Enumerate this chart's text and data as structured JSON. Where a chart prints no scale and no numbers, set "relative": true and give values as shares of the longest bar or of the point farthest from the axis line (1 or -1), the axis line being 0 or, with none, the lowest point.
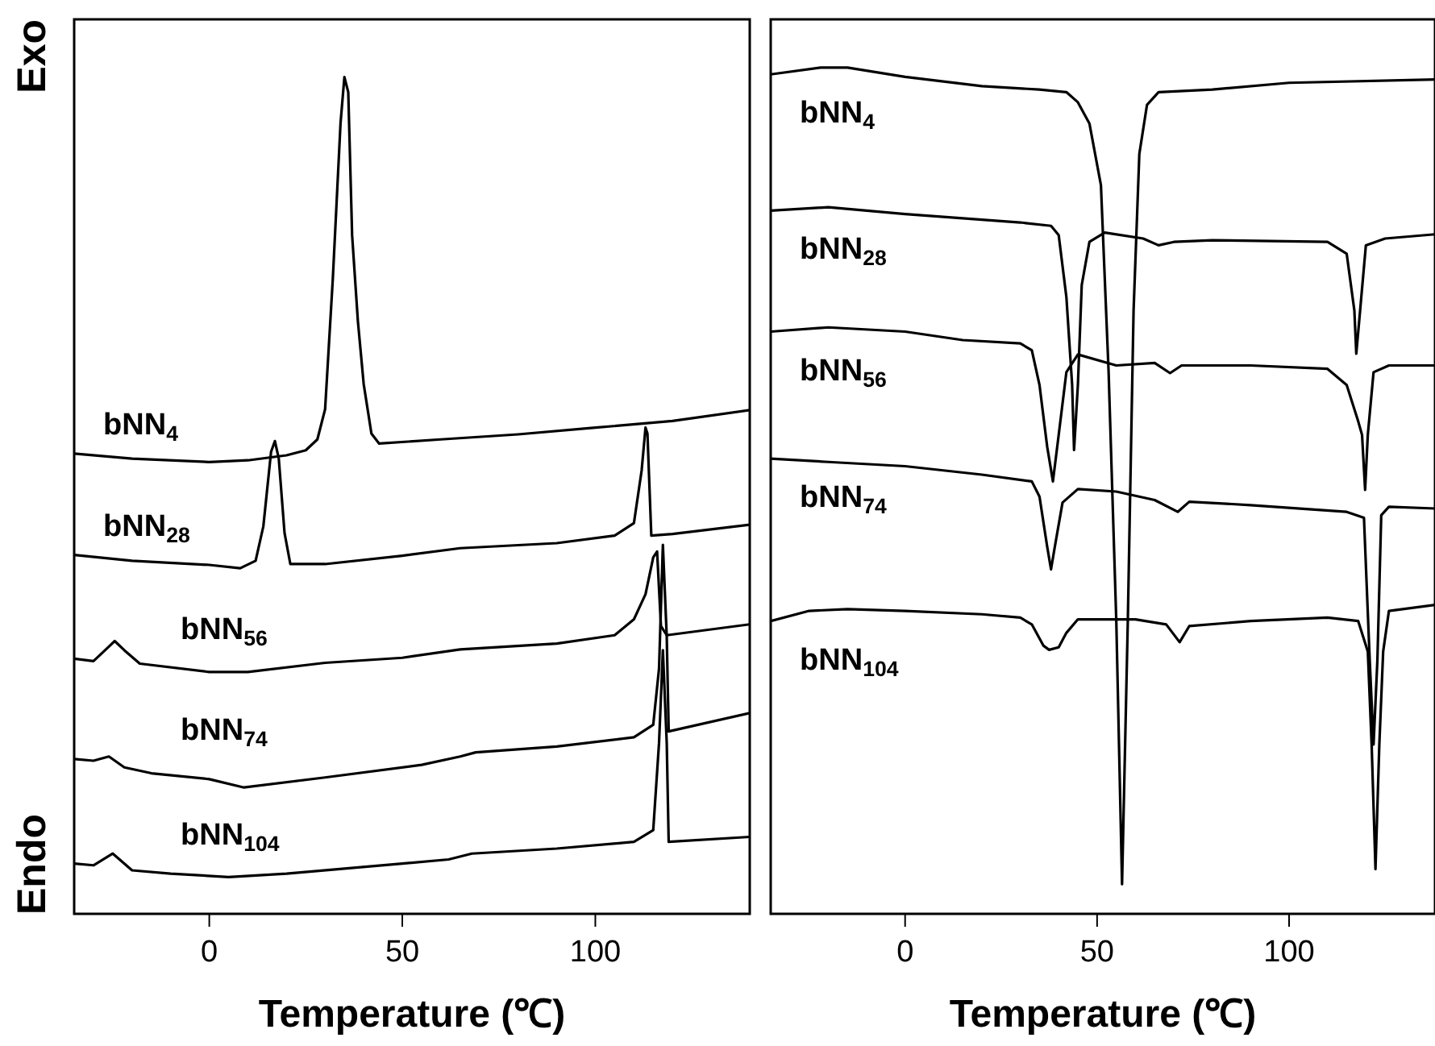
{
  "chart_data": [
    {
      "type": "line",
      "relative": true,
      "xlabel": "Temperature (℃)",
      "xlim": [
        -35,
        140
      ],
      "xticks": [
        0,
        50,
        100
      ],
      "annotations": [
        "Exo",
        "Endo"
      ],
      "series": [
        {
          "name": "bNN$_{4}$",
          "color": "#000000",
          "x": [
            -35,
            -20,
            0,
            10,
            20,
            25,
            28,
            30,
            32,
            34,
            35,
            36,
            37,
            38.5,
            40,
            42,
            44,
            60,
            80,
            100,
            120,
            140
          ],
          "values": [
            0.55,
            0.544,
            0.54,
            0.542,
            0.548,
            0.554,
            0.567,
            0.603,
            0.759,
            0.945,
            1.0,
            0.982,
            0.811,
            0.708,
            0.633,
            0.574,
            0.562,
            0.567,
            0.573,
            0.581,
            0.589,
            0.602
          ]
        },
        {
          "name": "bNN$_{28}$",
          "color": "#000000",
          "x": [
            -35,
            -20,
            0,
            8,
            12,
            14,
            16,
            17,
            18,
            19.5,
            21,
            30,
            50,
            65,
            90,
            105,
            110,
            112,
            113,
            113.5,
            114.5,
            120,
            140
          ],
          "values": [
            0.429,
            0.422,
            0.417,
            0.413,
            0.422,
            0.463,
            0.552,
            0.565,
            0.544,
            0.455,
            0.418,
            0.418,
            0.428,
            0.437,
            0.443,
            0.452,
            0.467,
            0.53,
            0.581,
            0.574,
            0.452,
            0.454,
            0.465
          ]
        },
        {
          "name": "bNN$_{56}$",
          "color": "#000000",
          "x": [
            -35,
            -30,
            -27,
            -24.5,
            -22,
            -18,
            0,
            10,
            30,
            50,
            65,
            90,
            105,
            110,
            113,
            115,
            116,
            117,
            118.5,
            140
          ],
          "values": [
            0.305,
            0.302,
            0.315,
            0.326,
            0.315,
            0.299,
            0.289,
            0.289,
            0.3,
            0.306,
            0.316,
            0.323,
            0.333,
            0.352,
            0.382,
            0.426,
            0.433,
            0.344,
            0.333,
            0.346
          ]
        },
        {
          "name": "bNN$_{74}$",
          "color": "#000000",
          "x": [
            -35,
            -30,
            -26,
            -22,
            -15,
            0,
            9,
            30,
            55,
            65,
            69,
            90,
            110,
            115,
            116.5,
            117.5,
            118.5,
            119,
            140
          ],
          "values": [
            0.185,
            0.183,
            0.188,
            0.175,
            0.168,
            0.161,
            0.151,
            0.163,
            0.178,
            0.188,
            0.193,
            0.2,
            0.211,
            0.226,
            0.293,
            0.441,
            0.331,
            0.218,
            0.24
          ]
        },
        {
          "name": "bNN$_{104}$",
          "color": "#000000",
          "x": [
            -35,
            -30,
            -25,
            -20,
            -10,
            5,
            20,
            50,
            62,
            68,
            90,
            110,
            115,
            116.5,
            117.5,
            118.5,
            119,
            140
          ],
          "values": [
            0.06,
            0.058,
            0.072,
            0.052,
            0.048,
            0.044,
            0.048,
            0.06,
            0.065,
            0.072,
            0.078,
            0.086,
            0.1,
            0.204,
            0.315,
            0.204,
            0.086,
            0.092
          ]
        }
      ]
    },
    {
      "type": "line",
      "relative": true,
      "xlabel": "Temperature (℃)",
      "xlim": [
        -35,
        138
      ],
      "xticks": [
        0,
        50,
        100
      ],
      "series": [
        {
          "name": "bNN$_{4}$",
          "color": "#000000",
          "x": [
            -35,
            -22,
            -15,
            0,
            20,
            35,
            42,
            45,
            48,
            51,
            53,
            55,
            56.5,
            58,
            59.5,
            61,
            63,
            66,
            80,
            100,
            138
          ],
          "values": [
            0.992,
            1.0,
            1.0,
            0.989,
            0.978,
            0.974,
            0.971,
            0.959,
            0.934,
            0.861,
            0.64,
            0.346,
            0.035,
            0.346,
            0.713,
            0.898,
            0.956,
            0.971,
            0.974,
            0.982,
            0.986
          ]
        },
        {
          "name": "bNN$_{28}$",
          "color": "#000000",
          "x": [
            -35,
            -20,
            0,
            30,
            38,
            40,
            42,
            43.5,
            44,
            45,
            46,
            48,
            52,
            62,
            66,
            70,
            80,
            110,
            115,
            117,
            117.5,
            118.5,
            120,
            125,
            138
          ],
          "values": [
            0.831,
            0.835,
            0.827,
            0.817,
            0.813,
            0.802,
            0.729,
            0.625,
            0.548,
            0.625,
            0.743,
            0.794,
            0.805,
            0.798,
            0.79,
            0.794,
            0.796,
            0.794,
            0.78,
            0.713,
            0.662,
            0.713,
            0.79,
            0.798,
            0.803
          ]
        },
        {
          "name": "bNN$_{56}$",
          "color": "#000000",
          "x": [
            -35,
            -20,
            0,
            15,
            30,
            33,
            35,
            37,
            38.5,
            40,
            42,
            45,
            55,
            65,
            69,
            72,
            90,
            110,
            115,
            118,
            119,
            119.8,
            120.5,
            122,
            126,
            138
          ],
          "values": [
            0.688,
            0.693,
            0.688,
            0.678,
            0.674,
            0.666,
            0.625,
            0.552,
            0.511,
            0.566,
            0.64,
            0.661,
            0.648,
            0.651,
            0.639,
            0.648,
            0.648,
            0.644,
            0.625,
            0.582,
            0.566,
            0.501,
            0.566,
            0.64,
            0.648,
            0.648
          ]
        },
        {
          "name": "bNN$_{74}$",
          "color": "#000000",
          "x": [
            -35,
            -20,
            0,
            20,
            33,
            35,
            37,
            38,
            39,
            41,
            45,
            55,
            65,
            71,
            74,
            90,
            115,
            119.5,
            121,
            122,
            123,
            124,
            126,
            138
          ],
          "values": [
            0.538,
            0.534,
            0.529,
            0.519,
            0.511,
            0.493,
            0.434,
            0.407,
            0.434,
            0.486,
            0.502,
            0.499,
            0.489,
            0.475,
            0.487,
            0.483,
            0.475,
            0.468,
            0.3,
            0.2,
            0.3,
            0.471,
            0.481,
            0.479
          ]
        },
        {
          "name": "bNN$_{104}$",
          "color": "#000000",
          "x": [
            -35,
            -25,
            -15,
            0,
            20,
            30,
            33,
            36,
            37.5,
            40,
            42,
            45,
            60,
            68,
            71.5,
            74,
            90,
            110,
            118,
            120.5,
            121.5,
            122.5,
            123.5,
            124.5,
            126,
            138
          ],
          "values": [
            0.346,
            0.358,
            0.36,
            0.358,
            0.354,
            0.35,
            0.342,
            0.317,
            0.312,
            0.315,
            0.332,
            0.348,
            0.348,
            0.342,
            0.321,
            0.34,
            0.346,
            0.35,
            0.346,
            0.31,
            0.2,
            0.053,
            0.2,
            0.31,
            0.358,
            0.365
          ]
        }
      ]
    }
  ]
}
